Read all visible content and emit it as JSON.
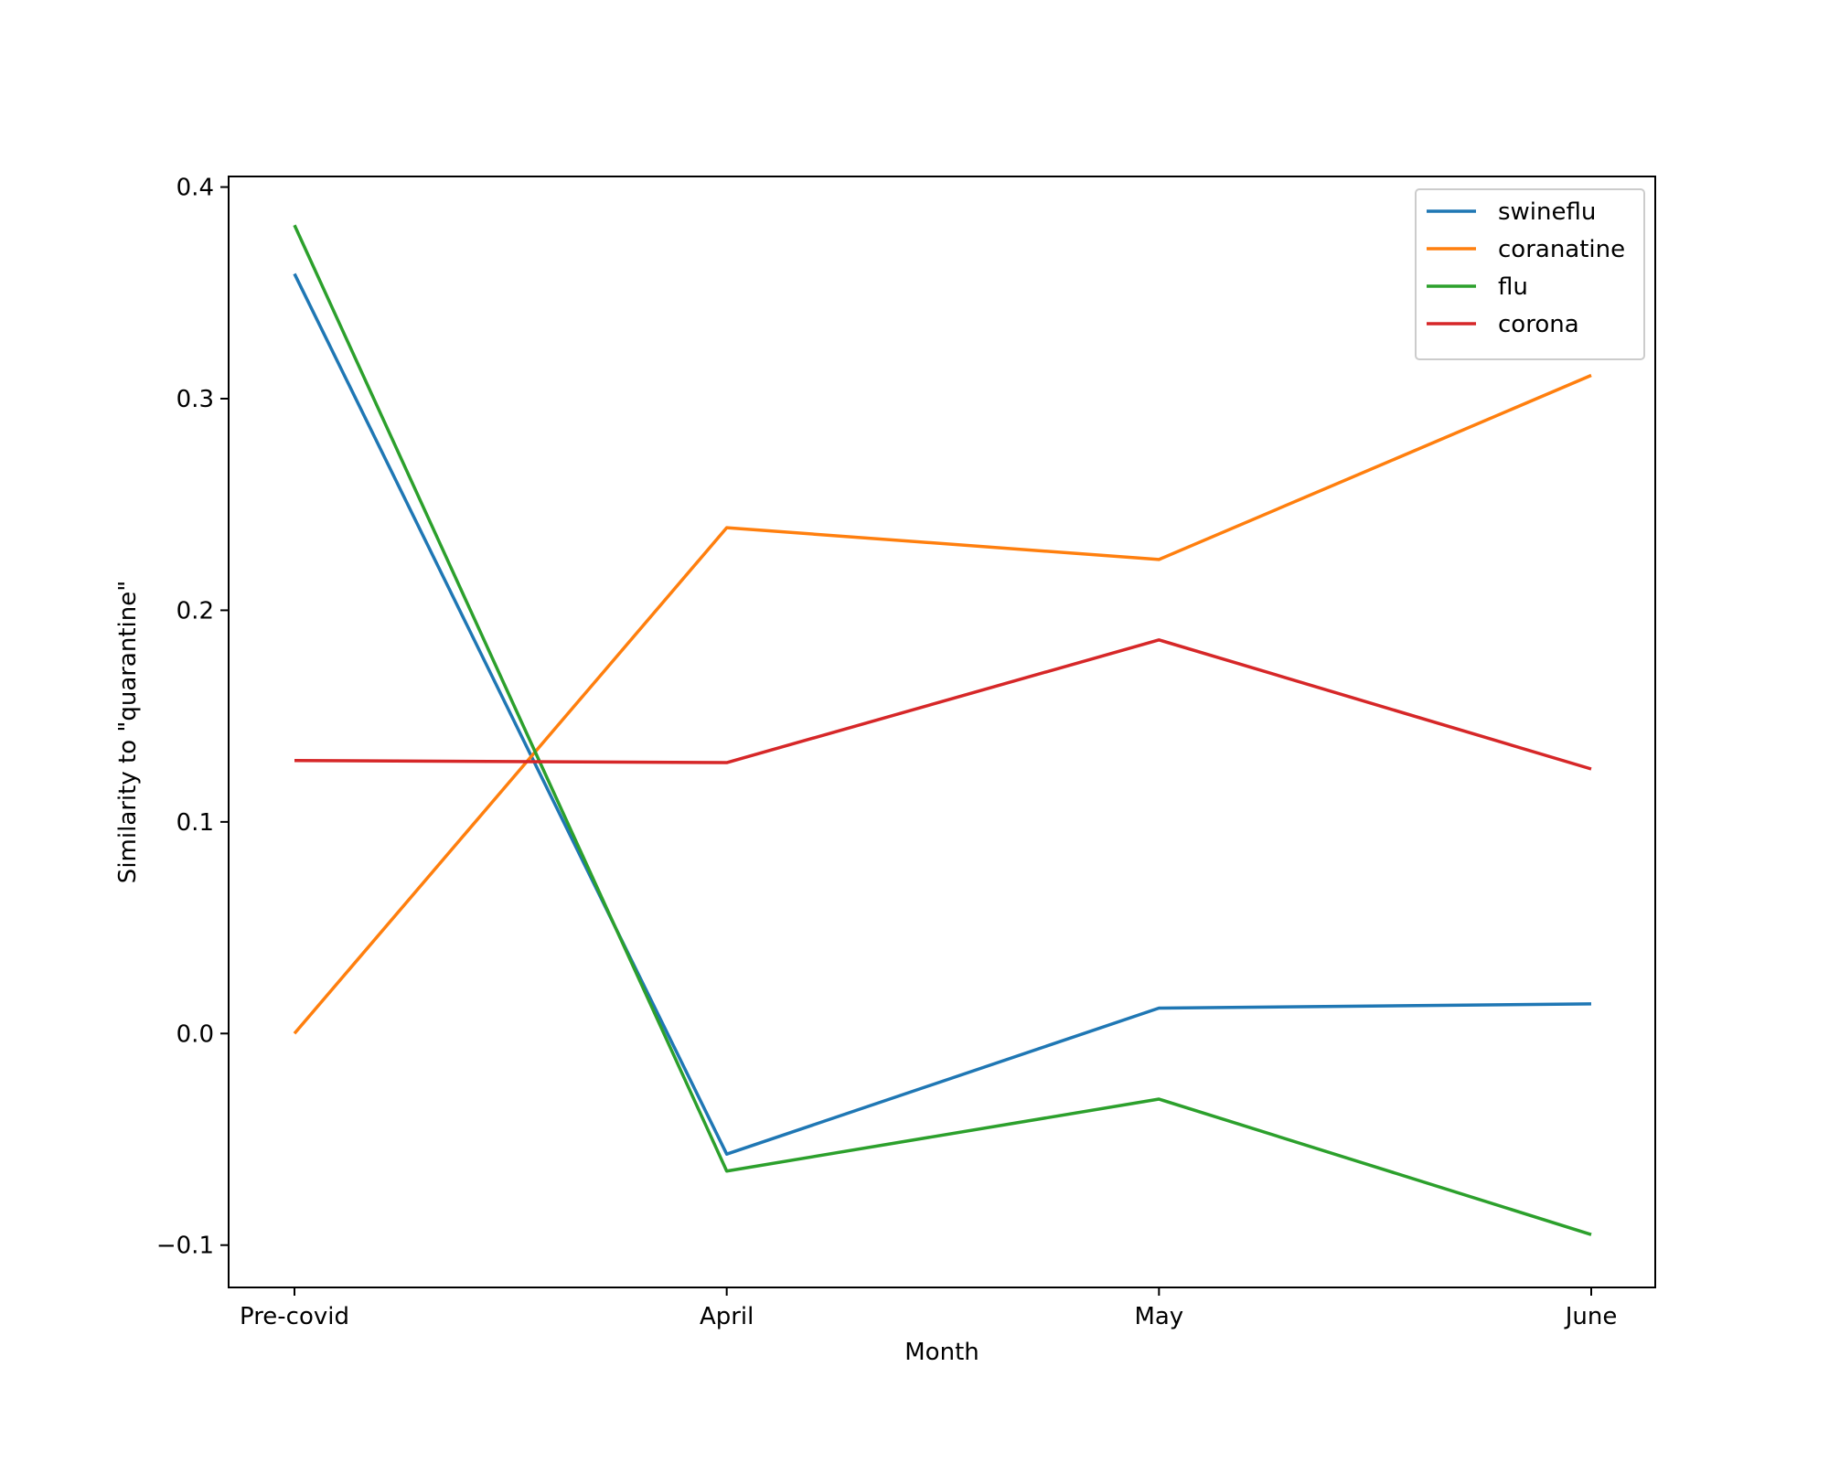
{
  "chart_data": {
    "type": "line",
    "title": "",
    "xlabel": "Month",
    "ylabel": "Similarity to \"quarantine\"",
    "categories": [
      "Pre-covid",
      "April",
      "May",
      "June"
    ],
    "y_ticks": [
      -0.1,
      0.0,
      0.1,
      0.2,
      0.3,
      0.4
    ],
    "y_tick_labels": [
      "−0.1",
      "0.0",
      "0.1",
      "0.2",
      "0.3",
      "0.4"
    ],
    "ylim": [
      -0.12,
      0.405
    ],
    "grid": false,
    "legend": "top-right",
    "series": [
      {
        "name": "swineflu",
        "color": "#1f77b4",
        "values": [
          0.359,
          -0.057,
          0.012,
          0.014
        ]
      },
      {
        "name": "coranatine",
        "color": "#ff7f0e",
        "values": [
          0.0,
          0.239,
          0.224,
          0.311
        ]
      },
      {
        "name": "flu",
        "color": "#2ca02c",
        "values": [
          0.382,
          -0.065,
          -0.031,
          -0.095
        ]
      },
      {
        "name": "corona",
        "color": "#d62728",
        "values": [
          0.129,
          0.128,
          0.186,
          0.125
        ]
      }
    ]
  }
}
